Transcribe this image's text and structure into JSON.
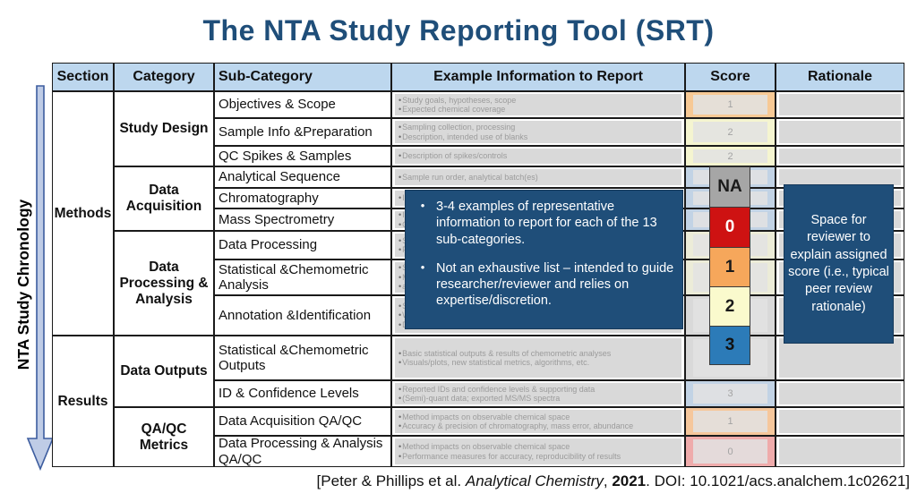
{
  "title": "The NTA Study Reporting Tool (SRT)",
  "chronology_label": "NTA Study Chronology",
  "header": {
    "section": "Section",
    "category": "Category",
    "sub_category": "Sub-Category",
    "example": "Example Information to Report",
    "score": "Score",
    "rationale": "Rationale"
  },
  "sections": [
    {
      "label": "Methods",
      "categories": [
        {
          "label": "Study Design",
          "rows": [
            {
              "sub": "Objectives & Scope",
              "examples": [
                "Study goals, hypotheses, scope",
                "Expected chemical coverage"
              ],
              "score": "1",
              "score_tint": "#f7c995"
            },
            {
              "sub": "Sample Info &Preparation",
              "examples": [
                "Sampling collection, processing",
                "Description, intended use of blanks"
              ],
              "score": "2",
              "score_tint": "#f5f5d0"
            },
            {
              "sub": "QC Spikes & Samples",
              "examples": [
                "Description of spikes/controls"
              ],
              "score": "2",
              "score_tint": "#f5f5d0"
            }
          ]
        },
        {
          "label": "Data Acquisition",
          "rows": [
            {
              "sub": "Analytical Sequence",
              "examples": [
                "Sample run order, analytical batch(es)"
              ],
              "score": "",
              "score_tint": "#c2d3e5"
            },
            {
              "sub": "Chromatography",
              "examples": [
                "In"
              ],
              "score": "",
              "score_tint": "#c2d3e5"
            },
            {
              "sub": "Mass Spectrometry",
              "examples": [
                "In",
                "Ca"
              ],
              "score": "",
              "score_tint": "#c2d3e5"
            }
          ]
        },
        {
          "label": "Data Processing & Analysis",
          "rows": [
            {
              "sub": "Data Processing",
              "examples": [
                "Sa",
                "Fe"
              ],
              "score": "",
              "score_tint": "#ececd8"
            },
            {
              "sub": "Statistical &Chemometric Analysis",
              "examples": [
                "S",
                "M",
                "an"
              ],
              "score": "",
              "score_tint": "#ececd8"
            },
            {
              "sub": "Annotation &Identification",
              "examples": [
                "S",
                "W",
                "Description of libraries and databases"
              ],
              "score": "",
              "score_tint": "#d9d9d9"
            }
          ]
        }
      ]
    },
    {
      "label": "Results",
      "categories": [
        {
          "label": "Data Outputs",
          "rows": [
            {
              "sub": "Statistical &Chemometric Outputs",
              "examples": [
                "Basic statistical outputs & results of chemometric analyses",
                "Visuals/plots, new statistical metrics, algorithms, etc."
              ],
              "score": "",
              "score_tint": "#d9d9d9"
            },
            {
              "sub": "ID & Confidence Levels",
              "examples": [
                "Reported IDs and confidence levels & supporting data",
                "(Semi)-quant data; exported MS/MS spectra"
              ],
              "score": "3",
              "score_tint": "#c2d3e5"
            }
          ]
        },
        {
          "label": "QA/QC Metrics",
          "rows": [
            {
              "sub": "Data Acquisition QA/QC",
              "examples": [
                "Method impacts on observable chemical space",
                "Accuracy & precision of chromatography, mass error, abundance"
              ],
              "score": "1",
              "score_tint": "#f6c79c"
            },
            {
              "sub": "Data Processing & Analysis QA/QC",
              "examples": [
                "Method impacts on observable chemical space",
                "Performance measures for accuracy, reproducibility of results"
              ],
              "score": "0",
              "score_tint": "#efabab"
            }
          ]
        }
      ]
    }
  ],
  "legend": [
    {
      "label": "NA",
      "bg": "#a6a6a6",
      "fg": "#1a1a1a"
    },
    {
      "label": "0",
      "bg": "#ce1212",
      "fg": "#ffffff"
    },
    {
      "label": "1",
      "bg": "#f6a75b",
      "fg": "#1a1a1a"
    },
    {
      "label": "2",
      "bg": "#fafacd",
      "fg": "#1a1a1a"
    },
    {
      "label": "3",
      "bg": "#2c7bb8",
      "fg": "#111111"
    }
  ],
  "example_note": {
    "bullets": [
      "3-4 examples of representative information to report for each of the 13 sub-categories.",
      "Not an exhaustive list – intended to guide researcher/reviewer and relies on expertise/discretion."
    ]
  },
  "rationale_note": "Space for reviewer to explain assigned score (i.e., typical peer review rationale)",
  "citation": {
    "prefix": "[Peter & Phillips et al. ",
    "journal": "Analytical Chemistry",
    "mid": ", ",
    "year": "2021",
    "suffix": ". DOI: 10.1021/acs.analchem.1c02621]"
  },
  "colors": {
    "navy": "#1f4e79",
    "header_bg": "#bdd7ee",
    "cell_gray": "#d9d9d9"
  }
}
